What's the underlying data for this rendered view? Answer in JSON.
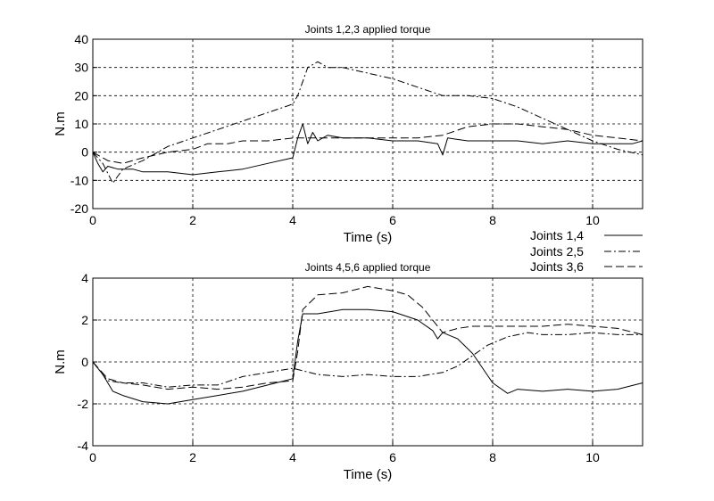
{
  "chart_data": [
    {
      "type": "line",
      "title": "Joints 1,2,3 applied torque",
      "xlabel": "Time (s)",
      "ylabel": "N.m",
      "xlim": [
        0,
        11
      ],
      "ylim": [
        -20,
        40
      ],
      "xticks": [
        0,
        2,
        4,
        6,
        8,
        10
      ],
      "yticks": [
        -20,
        -10,
        0,
        10,
        20,
        30,
        40
      ],
      "grid": true,
      "series": [
        {
          "name": "Joints 1,4",
          "dash": "solid",
          "x": [
            0,
            0.1,
            0.2,
            0.3,
            0.5,
            0.8,
            1.0,
            1.5,
            2.0,
            2.5,
            3.0,
            3.5,
            4.0,
            4.1,
            4.2,
            4.3,
            4.4,
            4.5,
            4.7,
            5.0,
            5.5,
            6.0,
            6.5,
            6.9,
            7.0,
            7.1,
            7.5,
            8.0,
            8.5,
            9.0,
            9.5,
            10.0,
            10.5,
            10.8,
            11.0
          ],
          "y": [
            0,
            -4,
            -7,
            -5,
            -6,
            -6,
            -7,
            -7,
            -8,
            -7,
            -6,
            -4,
            -2,
            5,
            10,
            3,
            7,
            4,
            6,
            5,
            5,
            4,
            4,
            3,
            -1,
            5,
            4,
            4,
            4,
            3,
            4,
            3,
            3,
            3,
            4
          ]
        },
        {
          "name": "Joints 2,5",
          "dash": "dashdot",
          "x": [
            0,
            0.2,
            0.4,
            0.6,
            1.0,
            1.5,
            2.0,
            2.5,
            3.0,
            3.5,
            4.0,
            4.1,
            4.3,
            4.5,
            4.7,
            5.0,
            5.5,
            6.0,
            6.5,
            7.0,
            7.5,
            8.0,
            8.5,
            9.0,
            9.5,
            10.0,
            10.5,
            11.0
          ],
          "y": [
            0,
            -4,
            -11,
            -6,
            -3,
            2,
            5,
            8,
            11,
            14,
            17,
            20,
            30,
            32,
            30,
            30,
            28,
            26,
            23,
            20,
            20,
            19,
            16,
            12,
            8,
            4,
            1,
            -1
          ]
        },
        {
          "name": "Joints 3,6",
          "dash": "dashed",
          "x": [
            0,
            0.3,
            0.6,
            1.0,
            1.5,
            2.0,
            2.3,
            2.7,
            3.0,
            3.5,
            4.0,
            4.5,
            5.0,
            5.5,
            6.0,
            6.5,
            7.0,
            7.5,
            8.0,
            8.5,
            9.0,
            9.5,
            10.0,
            10.5,
            11.0
          ],
          "y": [
            0,
            -3,
            -4,
            -2,
            0,
            1,
            3,
            3,
            4,
            4,
            5,
            5,
            5,
            5,
            5,
            5,
            6,
            9,
            10,
            10,
            9,
            8,
            6,
            5,
            4
          ]
        }
      ]
    },
    {
      "type": "line",
      "title": "Joints 4,5,6 applied torque",
      "xlabel": "Time (s)",
      "ylabel": "N.m",
      "xlim": [
        0,
        11
      ],
      "ylim": [
        -4,
        4
      ],
      "xticks": [
        0,
        2,
        4,
        6,
        8,
        10
      ],
      "yticks": [
        -4,
        -2,
        0,
        2,
        4
      ],
      "grid": true,
      "series": [
        {
          "name": "Joints 1,4",
          "dash": "solid",
          "x": [
            0,
            0.2,
            0.4,
            0.6,
            1.0,
            1.5,
            2.0,
            2.5,
            3.0,
            3.5,
            4.0,
            4.1,
            4.2,
            4.5,
            5.0,
            5.5,
            6.0,
            6.5,
            6.8,
            6.9,
            7.0,
            7.3,
            7.6,
            8.0,
            8.3,
            8.5,
            9.0,
            9.5,
            10.0,
            10.5,
            11.0
          ],
          "y": [
            0,
            -0.6,
            -1.4,
            -1.6,
            -1.9,
            -2.0,
            -1.8,
            -1.6,
            -1.4,
            -1.1,
            -0.8,
            1.0,
            2.3,
            2.3,
            2.5,
            2.5,
            2.4,
            2.0,
            1.5,
            1.1,
            1.4,
            1.1,
            0.4,
            -1.0,
            -1.5,
            -1.3,
            -1.4,
            -1.3,
            -1.4,
            -1.3,
            -1.0
          ]
        },
        {
          "name": "Joints 2,5",
          "dash": "dashdot",
          "x": [
            0,
            0.3,
            0.6,
            1.0,
            1.5,
            2.0,
            2.5,
            3.0,
            3.5,
            4.0,
            4.5,
            5.0,
            5.5,
            6.0,
            6.5,
            7.0,
            7.3,
            7.6,
            7.9,
            8.3,
            8.7,
            9.0,
            9.5,
            10.0,
            10.5,
            11.0
          ],
          "y": [
            0,
            -0.9,
            -1.0,
            -1.0,
            -1.2,
            -1.1,
            -1.1,
            -0.7,
            -0.5,
            -0.3,
            -0.6,
            -0.7,
            -0.6,
            -0.7,
            -0.7,
            -0.5,
            -0.2,
            0.3,
            0.8,
            1.2,
            1.4,
            1.3,
            1.3,
            1.4,
            1.3,
            1.3
          ]
        },
        {
          "name": "Joints 3,6",
          "dash": "dashed",
          "x": [
            0,
            0.3,
            0.6,
            1.0,
            1.5,
            2.0,
            2.5,
            3.0,
            3.5,
            4.0,
            4.1,
            4.2,
            4.5,
            5.0,
            5.5,
            6.0,
            6.3,
            6.6,
            7.0,
            7.3,
            7.6,
            8.0,
            8.5,
            9.0,
            9.5,
            10.0,
            10.5,
            11.0
          ],
          "y": [
            0,
            -0.8,
            -1.0,
            -1.1,
            -1.3,
            -1.2,
            -1.3,
            -1.2,
            -1.0,
            -0.9,
            0.5,
            2.5,
            3.2,
            3.3,
            3.6,
            3.4,
            3.2,
            2.6,
            1.4,
            1.6,
            1.7,
            1.7,
            1.7,
            1.7,
            1.8,
            1.7,
            1.6,
            1.3
          ]
        }
      ]
    }
  ]
}
